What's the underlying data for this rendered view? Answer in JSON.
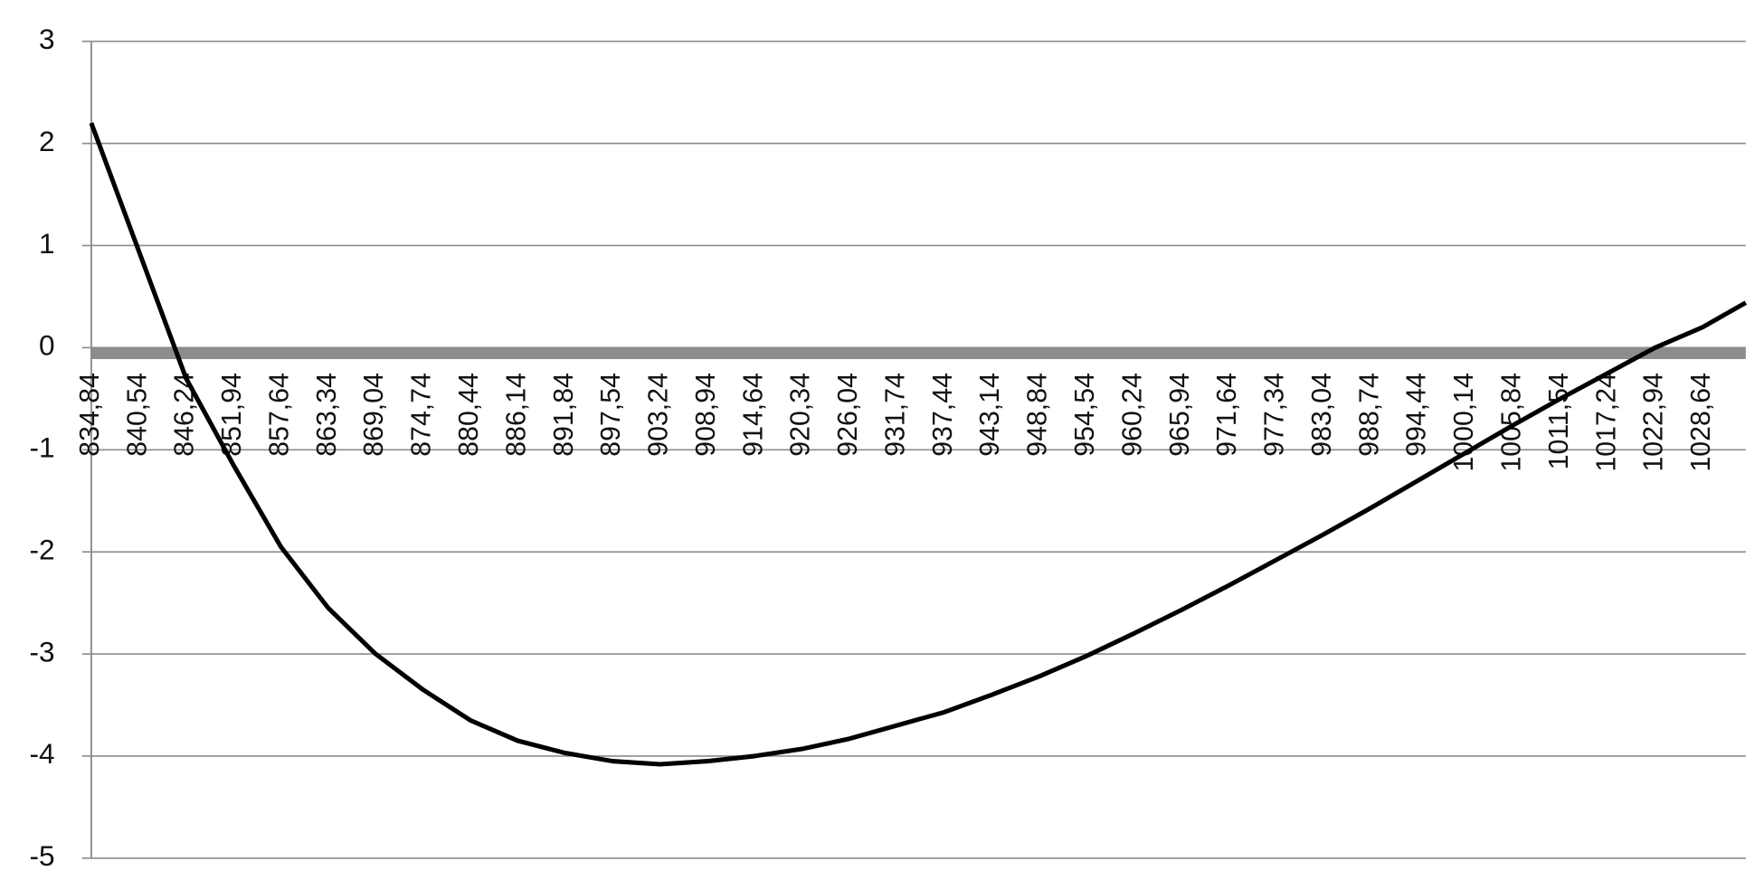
{
  "chart_data": {
    "type": "line",
    "x": [
      834.84,
      840.54,
      846.24,
      851.94,
      857.64,
      863.34,
      869.04,
      874.74,
      880.44,
      886.14,
      891.84,
      897.54,
      903.24,
      908.94,
      914.64,
      920.34,
      926.04,
      931.74,
      937.44,
      943.14,
      948.84,
      954.54,
      960.24,
      965.94,
      971.64,
      977.34,
      983.04,
      988.74,
      994.44,
      1000.14,
      1005.84,
      1011.54,
      1017.24,
      1022.94,
      1028.64,
      1033.84
    ],
    "series": [
      {
        "color": "#000000",
        "values": [
          2.2,
          0.95,
          -0.3,
          -1.15,
          -1.95,
          -2.55,
          -3.0,
          -3.35,
          -3.65,
          -3.85,
          -3.97,
          -4.05,
          -4.08,
          -4.05,
          -4.0,
          -3.93,
          -3.83,
          -3.7,
          -3.57,
          -3.4,
          -3.22,
          -3.02,
          -2.8,
          -2.57,
          -2.33,
          -2.08,
          -1.83,
          -1.57,
          -1.3,
          -1.03,
          -0.76,
          -0.5,
          -0.25,
          0.0,
          0.2,
          0.44
        ]
      }
    ],
    "xlim": [
      834.84,
      1033.84
    ],
    "xticks": [
      {
        "value": 834.84,
        "label": "834,84"
      },
      {
        "value": 840.54,
        "label": "840,54"
      },
      {
        "value": 846.24,
        "label": "846,24"
      },
      {
        "value": 851.94,
        "label": "851,94"
      },
      {
        "value": 857.64,
        "label": "857,64"
      },
      {
        "value": 863.34,
        "label": "863,34"
      },
      {
        "value": 869.04,
        "label": "869,04"
      },
      {
        "value": 874.74,
        "label": "874,74"
      },
      {
        "value": 880.44,
        "label": "880,44"
      },
      {
        "value": 886.14,
        "label": "886,14"
      },
      {
        "value": 891.84,
        "label": "891,84"
      },
      {
        "value": 897.54,
        "label": "897,54"
      },
      {
        "value": 903.24,
        "label": "903,24"
      },
      {
        "value": 908.94,
        "label": "908,94"
      },
      {
        "value": 914.64,
        "label": "914,64"
      },
      {
        "value": 920.34,
        "label": "920,34"
      },
      {
        "value": 926.04,
        "label": "926,04"
      },
      {
        "value": 931.74,
        "label": "931,74"
      },
      {
        "value": 937.44,
        "label": "937,44"
      },
      {
        "value": 943.14,
        "label": "943,14"
      },
      {
        "value": 948.84,
        "label": "948,84"
      },
      {
        "value": 954.54,
        "label": "954,54"
      },
      {
        "value": 960.24,
        "label": "960,24"
      },
      {
        "value": 965.94,
        "label": "965,94"
      },
      {
        "value": 971.64,
        "label": "971,64"
      },
      {
        "value": 977.34,
        "label": "977,34"
      },
      {
        "value": 983.04,
        "label": "983,04"
      },
      {
        "value": 988.74,
        "label": "988,74"
      },
      {
        "value": 994.44,
        "label": "994,44"
      },
      {
        "value": 1000.14,
        "label": "1000,14"
      },
      {
        "value": 1005.84,
        "label": "1005,84"
      },
      {
        "value": 1011.54,
        "label": "1011,54"
      },
      {
        "value": 1017.24,
        "label": "1017,24"
      },
      {
        "value": 1022.94,
        "label": "1022,94"
      },
      {
        "value": 1028.64,
        "label": "1028,64"
      }
    ],
    "ylim": [
      -5,
      3
    ],
    "yticks": [
      -5,
      -4,
      -3,
      -2,
      -1,
      0,
      1,
      2,
      3
    ],
    "grid": true
  }
}
